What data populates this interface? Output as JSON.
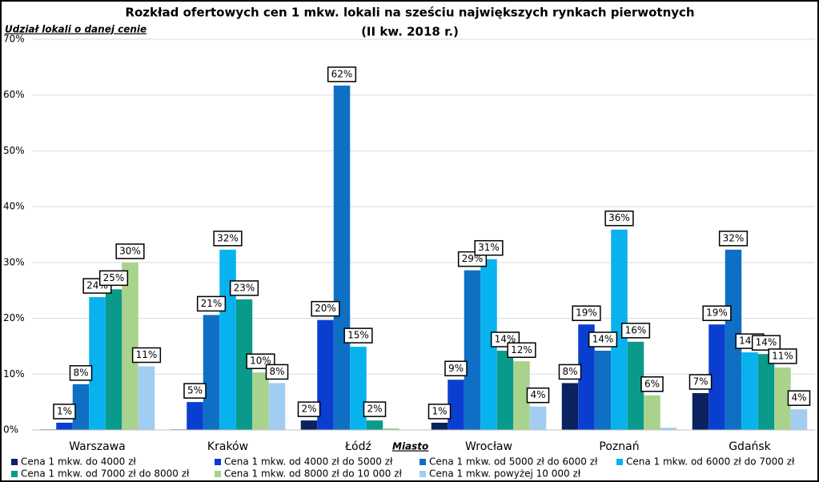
{
  "chart_data": {
    "type": "bar",
    "title": "Rozkład ofertowych cen 1 mkw. lokali na sześciu największych rynkach pierwotnych",
    "subtitle": "(II kw. 2018 r.)",
    "y_label": "Udział lokali o danej cenie",
    "x_label": "Miasto",
    "categories": [
      "Warszawa",
      "Kraków",
      "Łódź",
      "Wrocław",
      "Poznań",
      "Gdańsk"
    ],
    "series": [
      {
        "name": "Cena 1 mkw. do 4000 zł",
        "color": "#0b2160",
        "values": [
          0.1,
          0.1,
          1.7,
          1.3,
          8.4,
          6.6
        ],
        "value_labels": [
          null,
          null,
          "2%",
          "1%",
          "8%",
          "7%"
        ]
      },
      {
        "name": "Cena 1 mkw. od 4000 zł do 5000 zł",
        "color": "#0a3ed0",
        "values": [
          1.3,
          5.0,
          19.7,
          9.0,
          18.9,
          18.9
        ],
        "value_labels": [
          "1%",
          "5%",
          "20%",
          "9%",
          "19%",
          "19%"
        ]
      },
      {
        "name": "Cena 1 mkw. od 5000 zł do 6000 zł",
        "color": "#0f6fc4",
        "values": [
          8.2,
          20.6,
          61.7,
          28.6,
          14.2,
          32.3
        ],
        "value_labels": [
          "8%",
          "21%",
          "62%",
          "29%",
          "14%",
          "32%"
        ]
      },
      {
        "name": "Cena 1 mkw. od 6000 zł do 7000 zł",
        "color": "#08b2ee",
        "values": [
          23.8,
          32.3,
          14.9,
          30.6,
          35.9,
          13.9
        ],
        "value_labels": [
          "24%",
          "32%",
          "15%",
          "31%",
          "36%",
          "14%"
        ]
      },
      {
        "name": "Cena 1 mkw. od 7000 zł do 8000 zł",
        "color": "#0a9a8c",
        "values": [
          25.2,
          23.4,
          1.7,
          14.2,
          15.8,
          13.6
        ],
        "value_labels": [
          "25%",
          "23%",
          "2%",
          "14%",
          "16%",
          "14%"
        ]
      },
      {
        "name": "Cena 1 mkw. od 8000 zł do 10 000 zł",
        "color": "#a9d38c",
        "values": [
          30.0,
          10.3,
          0.3,
          12.3,
          6.2,
          11.2
        ],
        "value_labels": [
          "30%",
          "10%",
          null,
          "12%",
          "6%",
          "11%"
        ]
      },
      {
        "name": "Cena 1 mkw. powyżej 10 000 zł",
        "color": "#a2cdf3",
        "values": [
          11.4,
          8.4,
          0,
          4.2,
          0.4,
          3.7
        ],
        "value_labels": [
          "11%",
          "8%",
          null,
          "4%",
          null,
          "4%"
        ]
      }
    ],
    "ylim": [
      0,
      70
    ],
    "yticks": [
      {
        "value": 0,
        "label": "0%"
      },
      {
        "value": 10,
        "label": "10%"
      },
      {
        "value": 20,
        "label": "20%"
      },
      {
        "value": 30,
        "label": "30%"
      },
      {
        "value": 40,
        "label": "40%"
      },
      {
        "value": 50,
        "label": "50%"
      },
      {
        "value": 60,
        "label": "60%"
      },
      {
        "value": 70,
        "label": "70%"
      }
    ],
    "grid": true
  }
}
